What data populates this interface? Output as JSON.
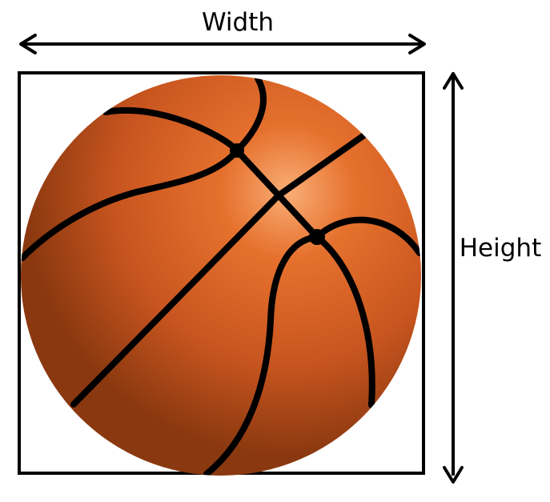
{
  "labels": {
    "width": "Width",
    "height": "Height"
  },
  "colors": {
    "outline": "#000000",
    "ball_highlight": "#f7a76a",
    "ball_mid": "#e0642a",
    "ball_dark": "#9a3f12",
    "seam": "#000000",
    "background": "#ffffff"
  },
  "icons": {
    "ball": "basketball-icon"
  }
}
